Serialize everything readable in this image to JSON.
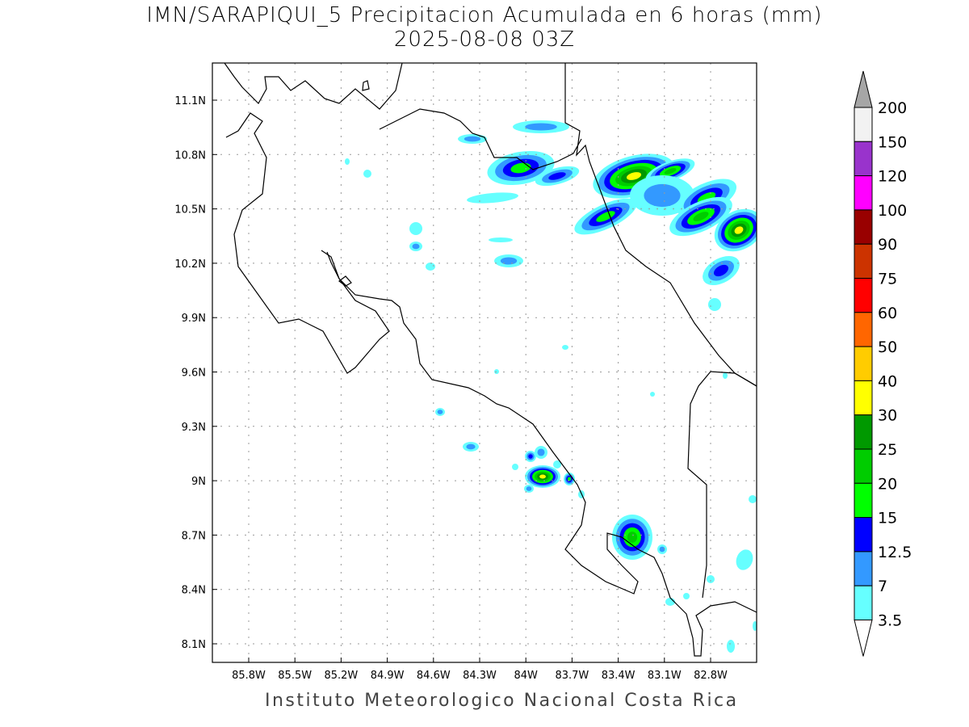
{
  "title": {
    "line1": "IMN/SARAPIQUI_5 Precipitacion Acumulada en 6 horas (mm)",
    "line2": "2025-08-08 03Z"
  },
  "credit": "Instituto Meteorologico Nacional Costa Rica",
  "chart_data": {
    "type": "heatmap",
    "variable": "Precipitacion Acumulada en 6 horas (mm)",
    "lon_ticks": [
      "85.8W",
      "85.5W",
      "85.2W",
      "84.9W",
      "84.6W",
      "84.3W",
      "84W",
      "83.7W",
      "83.4W",
      "83.1W",
      "82.8W"
    ],
    "lat_ticks": [
      "11.1N",
      "10.8N",
      "10.5N",
      "10.2N",
      "9.9N",
      "9.6N",
      "9.3N",
      "9N",
      "8.7N",
      "8.4N",
      "8.1N"
    ],
    "lon_range": [
      -86.0,
      -82.5
    ],
    "lat_range": [
      8.0,
      11.3
    ],
    "grid": true,
    "colorbar": {
      "placement": "right",
      "levels": [
        "3.5",
        "7",
        "12.5",
        "15",
        "20",
        "25",
        "30",
        "40",
        "50",
        "60",
        "75",
        "90",
        "100",
        "120",
        "150",
        "200"
      ],
      "colors": [
        "#66ffff",
        "#3399ff",
        "#0000ff",
        "#00ff00",
        "#00cc00",
        "#009900",
        "#ffff00",
        "#ffcc00",
        "#ff6600",
        "#ff0000",
        "#cc3300",
        "#990000",
        "#ff00ff",
        "#9933cc",
        "#f2f2f2"
      ],
      "over_color": "#a6a6a6",
      "under_color": "#ffffff"
    }
  }
}
